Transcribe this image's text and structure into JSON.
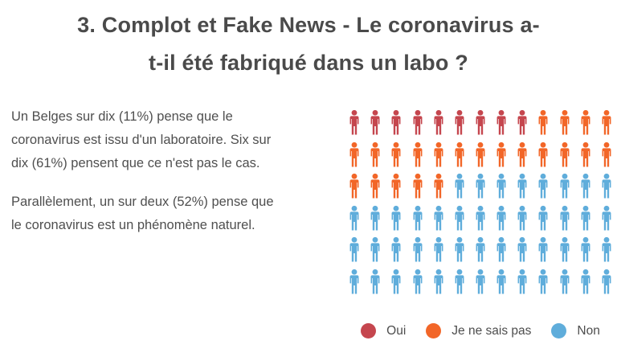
{
  "title": {
    "line1": "3. Complot et Fake News - Le coronavirus a-",
    "line2": "t-il été fabriqué dans un labo ?"
  },
  "body": {
    "paragraph1": "Un Belges sur dix (11%) pense que le coronavirus est issu d'un laboratoire.  Six sur dix (61%) pensent que ce n'est pas le cas.",
    "paragraph2": "Parallèlement, un sur deux (52%) pense que le coronavirus est un phénomène naturel."
  },
  "chart_data": {
    "type": "pictogram",
    "unit": "person-icon",
    "grid": {
      "rows": 6,
      "columns": 13,
      "total_icons": 78,
      "fill_order": "row-major-left-to-right"
    },
    "categories": [
      "Oui",
      "Je ne sais pas",
      "Non"
    ],
    "series": [
      {
        "name": "Oui",
        "icons": 9,
        "color": "#c5464e"
      },
      {
        "name": "Je ne sais pas",
        "icons": 22,
        "color": "#f26628"
      },
      {
        "name": "Non",
        "icons": 47,
        "color": "#5faddb"
      }
    ],
    "values_mentioned_in_text": {
      "oui_percent": "11%",
      "non_percent": "61%",
      "phenomene_naturel_percent": "52%"
    },
    "legend_position": "bottom",
    "colors": {
      "oui": "#c5464e",
      "je_ne_sais_pas": "#f26628",
      "non": "#5faddb"
    }
  }
}
